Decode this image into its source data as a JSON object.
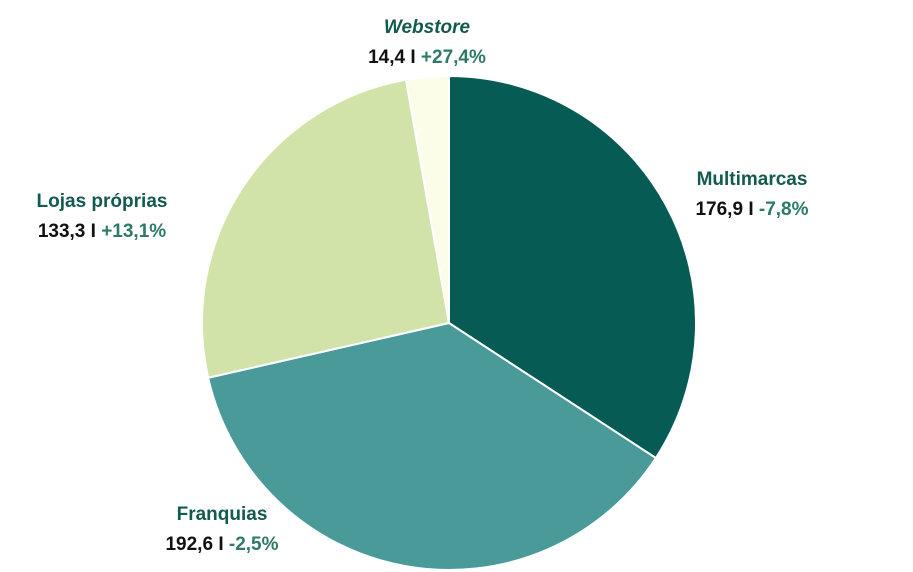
{
  "chart_data": {
    "type": "pie",
    "categories": [
      "Multimarcas",
      "Franquias",
      "Lojas próprias",
      "Webstore"
    ],
    "values": [
      176.9,
      192.6,
      133.3,
      14.4
    ],
    "value_labels": [
      "176,9",
      "192,6",
      "133,3",
      "14,4"
    ],
    "separator": "I",
    "changes": [
      "-7,8%",
      "-2,5%",
      "+13,1%",
      "+27,4%"
    ],
    "colors": [
      "#065c55",
      "#4a9a9a",
      "#d1e3a8",
      "#fbfde9"
    ]
  }
}
